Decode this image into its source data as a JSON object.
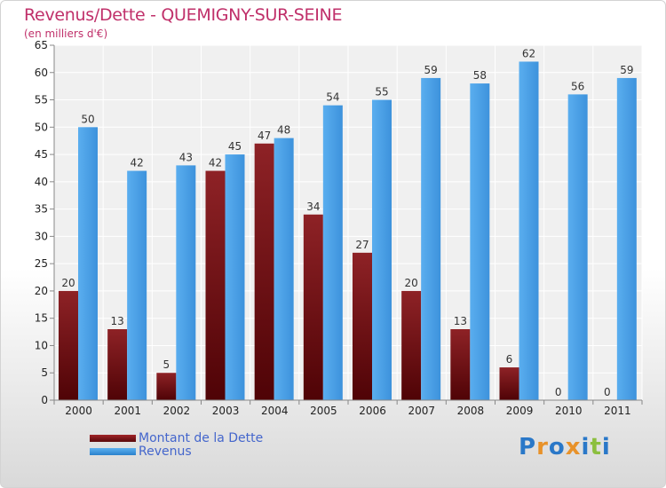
{
  "header": {
    "title": "Revenus/Dette - QUEMIGNY-SUR-SEINE",
    "subtitle": "(en milliers d'€)"
  },
  "chart_data": {
    "type": "bar",
    "title": "Revenus/Dette - QUEMIGNY-SUR-SEINE",
    "subtitle": "(en milliers d'€)",
    "xlabel": "",
    "ylabel": "",
    "categories": [
      "2000",
      "2001",
      "2002",
      "2003",
      "2004",
      "2005",
      "2006",
      "2007",
      "2008",
      "2009",
      "2010",
      "2011"
    ],
    "series": [
      {
        "name": "Montant de la Dette",
        "color": "#6e0f12",
        "values": [
          20,
          13,
          5,
          42,
          47,
          34,
          27,
          20,
          13,
          6,
          0,
          0
        ]
      },
      {
        "name": "Revenus",
        "color": "#3d9be6",
        "values": [
          50,
          42,
          43,
          45,
          48,
          54,
          55,
          59,
          58,
          62,
          56,
          59
        ]
      }
    ],
    "ylim": [
      0,
      65
    ],
    "yticks": [
      0,
      5,
      10,
      15,
      20,
      25,
      30,
      35,
      40,
      45,
      50,
      55,
      60,
      65
    ],
    "grid": true,
    "legend": "bottom-left"
  },
  "legend": {
    "debt_label": "Montant de la Dette",
    "revenue_label": "Revenus"
  },
  "logo": {
    "text": "Proxiti",
    "letters": [
      "P",
      "r",
      "o",
      "x",
      "i",
      "t",
      "i"
    ],
    "colors": [
      "#2a78c8",
      "#e8922a",
      "#2a78c8",
      "#e8922a",
      "#2a78c8",
      "#8cbf3f",
      "#2a78c8"
    ]
  }
}
